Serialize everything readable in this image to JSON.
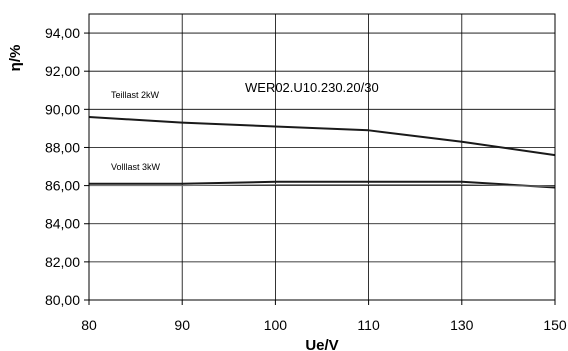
{
  "chart_data": {
    "type": "line",
    "title": "",
    "xlabel": "Ue/V",
    "ylabel": "η/%",
    "x_ticks": [
      "80",
      "90",
      "100",
      "110",
      "130",
      "150"
    ],
    "y_ticks": [
      "80,00",
      "82,00",
      "84,00",
      "86,00",
      "88,00",
      "90,00",
      "92,00",
      "94,00"
    ],
    "ylim": [
      80,
      95
    ],
    "grid": true,
    "annotations": {
      "model": "WER02.U10.230.20/30",
      "partial_load": "Teillast 2kW",
      "full_load": "Volllast 3kW"
    },
    "x": [
      80,
      90,
      100,
      110,
      130,
      150
    ],
    "series": [
      {
        "name": "Teillast 2kW",
        "values": [
          89.6,
          89.3,
          89.1,
          88.9,
          88.3,
          87.6
        ],
        "color": "#1a1a1a"
      },
      {
        "name": "Volllast 3kW",
        "values": [
          86.1,
          86.1,
          86.2,
          86.2,
          86.2,
          85.9
        ],
        "color": "#1a1a1a"
      },
      {
        "values": [
          86.0,
          86.0,
          86.05,
          86.05,
          86.05,
          85.95
        ],
        "color": "#777777"
      }
    ]
  }
}
